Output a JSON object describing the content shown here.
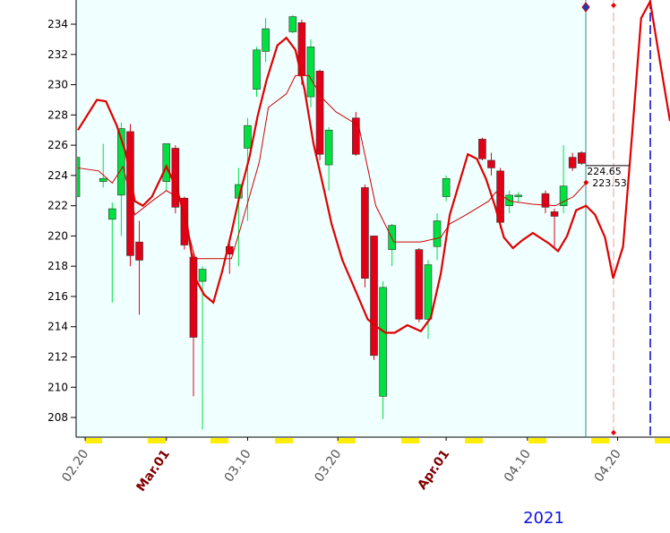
{
  "chart_data": {
    "type": "candlestick",
    "xlim": [
      -1,
      64.8
    ],
    "ylim": [
      206.7,
      235.6
    ],
    "yticks": [
      208,
      210,
      212,
      214,
      216,
      218,
      220,
      222,
      224,
      226,
      228,
      230,
      232,
      234
    ],
    "xticks": [
      {
        "value": 0,
        "label": "02.20"
      },
      {
        "value": 9,
        "label": "Mar.01"
      },
      {
        "value": 18,
        "label": "03.10"
      },
      {
        "value": 28,
        "label": "03.20"
      },
      {
        "value": 40,
        "label": "Apr.01"
      },
      {
        "value": 49,
        "label": "04.10"
      },
      {
        "value": 59,
        "label": "04.20"
      }
    ],
    "year_label": "2021",
    "up_color": "#00e040",
    "down_color": "#e00018",
    "candles": {
      "x": [
        -1,
        2,
        3,
        4,
        5,
        6,
        9,
        10,
        11,
        12,
        13,
        16,
        17,
        18,
        19,
        20,
        23,
        24,
        25,
        26,
        27,
        30,
        31,
        32,
        33,
        34,
        37,
        38,
        39,
        40,
        44,
        45,
        46,
        47,
        48,
        51,
        52,
        53,
        54,
        55
      ],
      "open": [
        222.6,
        223.6,
        221.1,
        222.7,
        226.9,
        219.6,
        223.6,
        225.8,
        222.5,
        218.6,
        217.0,
        219.3,
        222.5,
        225.8,
        229.7,
        232.2,
        233.5,
        234.1,
        229.2,
        230.9,
        224.7,
        227.8,
        223.2,
        220.0,
        209.4,
        219.1,
        219.1,
        214.5,
        219.3,
        222.6,
        226.4,
        225.0,
        224.3,
        222.0,
        222.6,
        222.8,
        221.6,
        222.0,
        225.2,
        225.5
      ],
      "high": [
        225.5,
        226.1,
        222.2,
        227.5,
        227.4,
        221.0,
        226.1,
        226.0,
        222.6,
        219.0,
        218.0,
        219.5,
        224.5,
        227.8,
        232.5,
        234.4,
        234.6,
        234.3,
        233.0,
        231.0,
        227.2,
        228.2,
        223.4,
        220.0,
        217.0,
        220.8,
        219.2,
        218.4,
        221.5,
        224.0,
        226.5,
        225.5,
        224.5,
        223.0,
        222.9,
        223.0,
        221.8,
        226.0,
        225.5,
        225.6
      ],
      "low": [
        222.2,
        223.2,
        215.6,
        220.0,
        218.0,
        214.8,
        223.0,
        221.5,
        219.1,
        209.4,
        207.2,
        217.5,
        218.0,
        221.0,
        229.2,
        231.5,
        233.4,
        230.0,
        228.5,
        225.0,
        223.0,
        225.3,
        216.6,
        211.8,
        207.9,
        218.0,
        214.3,
        213.2,
        218.4,
        222.3,
        225.0,
        224.0,
        220.5,
        221.5,
        222.2,
        221.5,
        219.2,
        221.5,
        224.3,
        224.7
      ],
      "close": [
        225.2,
        223.8,
        221.8,
        227.1,
        218.7,
        218.4,
        226.1,
        221.9,
        219.4,
        213.3,
        217.8,
        218.8,
        223.4,
        227.3,
        232.3,
        233.7,
        234.5,
        230.6,
        232.5,
        225.4,
        227.0,
        225.4,
        217.2,
        212.1,
        216.6,
        220.7,
        214.5,
        218.1,
        221.0,
        223.8,
        225.1,
        224.5,
        220.9,
        222.7,
        222.7,
        221.9,
        221.3,
        223.3,
        224.5,
        224.8
      ]
    },
    "series": [
      {
        "color": "#e00000",
        "width": 2.2,
        "x": [
          -0.8,
          1.3,
          2.3,
          3.5,
          4.5,
          5.5,
          6.4,
          7.4,
          9.0,
          10.1,
          11.2,
          12.2,
          13.2,
          14.2,
          15.2,
          16.2,
          17.2,
          18.2,
          19.1,
          20.1,
          21.3,
          22.3,
          23.3,
          24.3,
          25.3,
          26.3,
          27.3,
          28.5,
          29.8,
          31.3,
          32.3,
          33.3,
          34.3,
          35.7,
          37.2,
          38.3,
          39.4,
          40.4,
          42.4,
          43.4,
          44.4,
          45.4,
          46.4,
          47.4,
          48.4,
          49.6,
          51.4,
          52.4,
          53.4,
          54.4,
          55.5,
          56.5,
          57.6,
          58.5,
          59.6,
          60.6,
          61.6,
          62.6,
          63.7,
          64.8
        ],
        "values": [
          227.0,
          229.0,
          228.9,
          227.3,
          225.5,
          222.3,
          222.0,
          222.6,
          224.6,
          223.2,
          221.1,
          217.2,
          216.1,
          215.6,
          217.7,
          220.2,
          222.9,
          225.2,
          227.9,
          230.3,
          232.6,
          233.1,
          232.3,
          229.7,
          226.1,
          223.5,
          220.8,
          218.4,
          216.6,
          214.5,
          214.0,
          213.6,
          213.6,
          214.1,
          213.7,
          214.6,
          217.5,
          221.4,
          225.4,
          225.1,
          223.8,
          222.0,
          219.9,
          219.2,
          219.7,
          220.2,
          219.5,
          219.0,
          220.0,
          221.7,
          222.0,
          221.4,
          219.9,
          217.2,
          219.3,
          226.7,
          234.4,
          235.5,
          231.5,
          227.6
        ]
      },
      {
        "color": "#d00000",
        "width": 1,
        "x": [
          -0.8,
          1.5,
          3.0,
          4.2,
          5.5,
          7.4,
          9.0,
          10.4,
          12.2,
          13.9,
          16.2,
          17.2,
          19.3,
          20.3,
          22.3,
          23.3,
          24.8,
          26.3,
          27.8,
          30.3,
          32.2,
          34.2,
          37.2,
          39.4,
          40.4,
          42.2,
          44.7,
          45.5,
          47.1,
          49.6,
          52.1,
          54.1,
          55.5
        ],
        "values": [
          224.5,
          224.3,
          223.5,
          224.6,
          221.4,
          222.3,
          223.0,
          222.5,
          218.5,
          218.5,
          218.5,
          220.5,
          224.9,
          228.5,
          229.4,
          230.6,
          230.6,
          229.1,
          228.2,
          227.3,
          222.0,
          219.6,
          219.6,
          219.9,
          220.8,
          221.4,
          222.3,
          222.9,
          222.3,
          222.1,
          222.0,
          222.6,
          223.5
        ]
      }
    ],
    "last_values": [
      224.65,
      223.53
    ],
    "last_x": 55.5
  }
}
